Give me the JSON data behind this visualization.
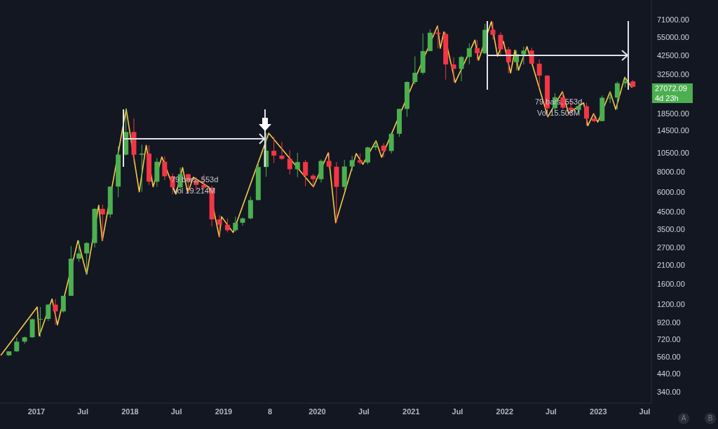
{
  "chart_data": {
    "type": "candlestick",
    "log": true,
    "grid": false,
    "legend": false,
    "xlim": [
      "2016-08-12",
      "2023-07-27"
    ],
    "xticks": [
      {
        "value": "2017-01-01",
        "label": "2017"
      },
      {
        "value": "2017-07-01",
        "label": "Jul"
      },
      {
        "value": "2018-01-01",
        "label": "2018"
      },
      {
        "value": "2018-07-01",
        "label": "Jul"
      },
      {
        "value": "2019-01-01",
        "label": "2019"
      },
      {
        "value": "2019-07-01",
        "label": "8"
      },
      {
        "value": "2020-01-01",
        "label": "2020"
      },
      {
        "value": "2020-07-01",
        "label": "Jul"
      },
      {
        "value": "2021-01-01",
        "label": "2021"
      },
      {
        "value": "2021-07-01",
        "label": "Jul"
      },
      {
        "value": "2022-01-01",
        "label": "2022"
      },
      {
        "value": "2022-07-01",
        "label": "Jul"
      },
      {
        "value": "2023-01-01",
        "label": "2023"
      },
      {
        "value": "2023-07-01",
        "label": "Jul"
      }
    ],
    "ylim": [
      290,
      94000
    ],
    "yticks": [
      {
        "value": 340,
        "label": "340.00"
      },
      {
        "value": 440,
        "label": "440.00"
      },
      {
        "value": 560,
        "label": "560.00"
      },
      {
        "value": 720,
        "label": "720.00"
      },
      {
        "value": 920,
        "label": "920.00"
      },
      {
        "value": 1200,
        "label": "1200.00"
      },
      {
        "value": 1600,
        "label": "1600.00"
      },
      {
        "value": 2100,
        "label": "2100.00"
      },
      {
        "value": 2700,
        "label": "2700.00"
      },
      {
        "value": 3500,
        "label": "3500.00"
      },
      {
        "value": 4500,
        "label": "4500.00"
      },
      {
        "value": 6000,
        "label": "6000.00"
      },
      {
        "value": 8000,
        "label": "8000.00"
      },
      {
        "value": 10500,
        "label": "10500.00"
      },
      {
        "value": 14500,
        "label": "14500.00"
      },
      {
        "value": 18500,
        "label": "18500.00"
      },
      {
        "value": 32500,
        "label": "32500.00"
      },
      {
        "value": 42500,
        "label": "42500.00"
      },
      {
        "value": 55000,
        "label": "55000.00"
      },
      {
        "value": 71000,
        "label": "71000.00"
      }
    ],
    "x": [
      "2016-09-15",
      "2016-10-15",
      "2016-11-15",
      "2016-12-15",
      "2017-01-15",
      "2017-02-15",
      "2017-03-15",
      "2017-04-15",
      "2017-05-15",
      "2017-06-15",
      "2017-07-15",
      "2017-08-15",
      "2017-09-15",
      "2017-10-15",
      "2017-11-15",
      "2017-12-15",
      "2018-01-15",
      "2018-02-15",
      "2018-03-15",
      "2018-04-15",
      "2018-05-15",
      "2018-06-15",
      "2018-07-15",
      "2018-08-15",
      "2018-09-15",
      "2018-10-15",
      "2018-11-15",
      "2018-12-15",
      "2019-01-15",
      "2019-02-15",
      "2019-03-15",
      "2019-04-15",
      "2019-05-15",
      "2019-06-15",
      "2019-07-15",
      "2019-08-15",
      "2019-09-15",
      "2019-10-15",
      "2019-11-15",
      "2019-12-15",
      "2020-01-15",
      "2020-02-15",
      "2020-03-15",
      "2020-04-15",
      "2020-05-15",
      "2020-06-15",
      "2020-07-15",
      "2020-08-15",
      "2020-09-15",
      "2020-10-15",
      "2020-11-15",
      "2020-12-15",
      "2021-01-15",
      "2021-02-15",
      "2021-03-15",
      "2021-04-15",
      "2021-05-15",
      "2021-06-15",
      "2021-07-15",
      "2021-08-15",
      "2021-09-15",
      "2021-10-15",
      "2021-11-15",
      "2021-12-15",
      "2022-01-15",
      "2022-02-15",
      "2022-03-15",
      "2022-04-15",
      "2022-05-15",
      "2022-06-15",
      "2022-07-15",
      "2022-08-15",
      "2022-09-15",
      "2022-10-15",
      "2022-11-15",
      "2022-12-15",
      "2023-01-15",
      "2023-02-15",
      "2023-03-15",
      "2023-04-15",
      "2023-05-15"
    ],
    "ohlc": [
      [
        575,
        610,
        570,
        609
      ],
      [
        609,
        740,
        605,
        700
      ],
      [
        700,
        752,
        680,
        745
      ],
      [
        745,
        975,
        740,
        965
      ],
      [
        965,
        1150,
        750,
        970
      ],
      [
        970,
        1200,
        940,
        1190
      ],
      [
        1190,
        1290,
        890,
        1080
      ],
      [
        1080,
        1350,
        1060,
        1350
      ],
      [
        1350,
        2760,
        1350,
        2300
      ],
      [
        2300,
        2980,
        2200,
        2480
      ],
      [
        2480,
        2920,
        1840,
        2880
      ],
      [
        2880,
        4750,
        2700,
        4700
      ],
      [
        4700,
        5000,
        2980,
        4340
      ],
      [
        4340,
        6470,
        4150,
        6470
      ],
      [
        6470,
        11500,
        5550,
        10230
      ],
      [
        10230,
        19800,
        10100,
        14150
      ],
      [
        14150,
        17250,
        9200,
        10220
      ],
      [
        10220,
        11800,
        6000,
        10390
      ],
      [
        10390,
        11700,
        6600,
        6940
      ],
      [
        6940,
        9750,
        6450,
        9240
      ],
      [
        9240,
        10000,
        7100,
        7500
      ],
      [
        7500,
        7800,
        5800,
        6400
      ],
      [
        6400,
        8500,
        6100,
        7730
      ],
      [
        7730,
        7750,
        5880,
        7030
      ],
      [
        7030,
        7400,
        6100,
        6630
      ],
      [
        6630,
        7700,
        6200,
        6370
      ],
      [
        6370,
        6550,
        3650,
        4040
      ],
      [
        4040,
        4300,
        3150,
        3740
      ],
      [
        3740,
        4100,
        3350,
        3460
      ],
      [
        3460,
        4200,
        3380,
        3850
      ],
      [
        3850,
        4150,
        3690,
        4100
      ],
      [
        4100,
        5600,
        4050,
        5330
      ],
      [
        5330,
        9100,
        5330,
        8570
      ],
      [
        8570,
        13900,
        7450,
        10820
      ],
      [
        10820,
        13200,
        9050,
        10090
      ],
      [
        10090,
        12300,
        9450,
        9630
      ],
      [
        9630,
        10900,
        7700,
        8300
      ],
      [
        8300,
        10500,
        7400,
        9200
      ],
      [
        9200,
        9500,
        6500,
        7570
      ],
      [
        7570,
        7750,
        6450,
        7190
      ],
      [
        7190,
        9550,
        6850,
        9350
      ],
      [
        9350,
        10500,
        8400,
        8600
      ],
      [
        8600,
        9200,
        3850,
        6440
      ],
      [
        6440,
        9500,
        6150,
        8630
      ],
      [
        8630,
        10070,
        8100,
        9450
      ],
      [
        9450,
        10400,
        8900,
        9140
      ],
      [
        9140,
        11450,
        8900,
        11350
      ],
      [
        11350,
        12480,
        10900,
        11650
      ],
      [
        11650,
        12050,
        9850,
        10780
      ],
      [
        10780,
        14100,
        10400,
        13800
      ],
      [
        13800,
        19800,
        13200,
        19700
      ],
      [
        19700,
        29300,
        17600,
        29000
      ],
      [
        29000,
        41900,
        28100,
        33100
      ],
      [
        33100,
        58300,
        32300,
        45200
      ],
      [
        45200,
        61800,
        45000,
        58800
      ],
      [
        58800,
        64800,
        47000,
        57700
      ],
      [
        57700,
        59500,
        30000,
        37300
      ],
      [
        37300,
        41300,
        28800,
        35000
      ],
      [
        35000,
        42300,
        29300,
        41500
      ],
      [
        41500,
        50500,
        37300,
        47100
      ],
      [
        47100,
        52900,
        39600,
        43800
      ],
      [
        43800,
        67000,
        43300,
        61300
      ],
      [
        61300,
        69000,
        53300,
        57000
      ],
      [
        57000,
        59100,
        42000,
        46300
      ],
      [
        46300,
        47900,
        32900,
        38500
      ],
      [
        38500,
        45800,
        34300,
        43200
      ],
      [
        43200,
        48200,
        37200,
        45500
      ],
      [
        45500,
        47400,
        37600,
        37700
      ],
      [
        37700,
        40000,
        26700,
        31800
      ],
      [
        31800,
        31900,
        17600,
        19900
      ],
      [
        19900,
        24700,
        18800,
        23300
      ],
      [
        23300,
        25200,
        19600,
        20050
      ],
      [
        20050,
        22800,
        18150,
        19430
      ],
      [
        19430,
        21100,
        18200,
        20500
      ],
      [
        20500,
        21500,
        15500,
        17170
      ],
      [
        17170,
        18400,
        16300,
        16550
      ],
      [
        16550,
        23900,
        16500,
        23140
      ],
      [
        23140,
        25250,
        21400,
        23150
      ],
      [
        23150,
        29200,
        19550,
        28480
      ],
      [
        28480,
        31000,
        26900,
        29250
      ],
      [
        29250,
        29800,
        26800,
        27072.09
      ]
    ],
    "colors": [
      "#4caf50",
      "#4caf50",
      "#4caf50",
      "#4caf50",
      "#4caf50",
      "#4caf50",
      "#f23645",
      "#4caf50",
      "#4caf50",
      "#4caf50",
      "#4caf50",
      "#4caf50",
      "#f23645",
      "#4caf50",
      "#4caf50",
      "#4caf50",
      "#f23645",
      "#4caf50",
      "#f23645",
      "#4caf50",
      "#f23645",
      "#f23645",
      "#4caf50",
      "#f23645",
      "#f23645",
      "#f23645",
      "#f23645",
      "#f23645",
      "#f23645",
      "#4caf50",
      "#4caf50",
      "#4caf50",
      "#4caf50",
      "#4caf50",
      "#f23645",
      "#f23645",
      "#f23645",
      "#4caf50",
      "#f23645",
      "#f23645",
      "#4caf50",
      "#f23645",
      "#f23645",
      "#4caf50",
      "#4caf50",
      "#f23645",
      "#4caf50",
      "#4caf50",
      "#f23645",
      "#4caf50",
      "#4caf50",
      "#4caf50",
      "#4caf50",
      "#4caf50",
      "#4caf50",
      "#f23645",
      "#f23645",
      "#f23645",
      "#4caf50",
      "#4caf50",
      "#f23645",
      "#4caf50",
      "#f23645",
      "#f23645",
      "#f23645",
      "#4caf50",
      "#4caf50",
      "#f23645",
      "#f23645",
      "#f23645",
      "#4caf50",
      "#f23645",
      "#f23645",
      "#4caf50",
      "#f23645",
      "#f23645",
      "#4caf50",
      "#4caf50",
      "#4caf50",
      "#4caf50",
      "#f23645"
    ],
    "series": [
      {
        "type": "line",
        "color": "#f7c948",
        "x": [
          "2016-08-15",
          "2017-01-04",
          "2017-01-12",
          "2017-03-03",
          "2017-03-24",
          "2017-06-12",
          "2017-07-16",
          "2017-09-01",
          "2017-09-15",
          "2017-12-17",
          "2018-02-06",
          "2018-03-05",
          "2018-04-01",
          "2018-05-05",
          "2018-06-29",
          "2018-07-25",
          "2018-08-14",
          "2018-09-05",
          "2018-11-05",
          "2018-12-15",
          "2018-12-24",
          "2019-02-07",
          "2019-06-26",
          "2019-12-17",
          "2020-02-13",
          "2020-03-13",
          "2020-06-01",
          "2020-06-27",
          "2020-08-17",
          "2020-09-08",
          "2021-04-14",
          "2021-04-25",
          "2021-05-09",
          "2021-06-22",
          "2021-09-07",
          "2021-09-21",
          "2021-11-10",
          "2021-12-04",
          "2021-12-27",
          "2022-01-24",
          "2022-02-10",
          "2022-02-24",
          "2022-03-29",
          "2022-06-18",
          "2022-08-14",
          "2022-09-07",
          "2022-11-05",
          "2022-11-21",
          "2022-12-14",
          "2022-12-30",
          "2023-02-16",
          "2023-03-10",
          "2023-04-14",
          "2023-05-12"
        ],
        "values": [
          575,
          1150,
          760,
          1290,
          890,
          2980,
          1840,
          4950,
          2980,
          19700,
          6000,
          11700,
          6450,
          9900,
          5800,
          8500,
          5900,
          7400,
          6400,
          3150,
          4200,
          3350,
          13900,
          6450,
          10500,
          3850,
          10400,
          8900,
          12480,
          9850,
          64800,
          47000,
          59500,
          28800,
          52900,
          39600,
          69000,
          42000,
          52000,
          33000,
          45800,
          34300,
          48200,
          17600,
          25200,
          18500,
          21500,
          15500,
          18400,
          16300,
          25200,
          19600,
          31000,
          26800
        ]
      }
    ],
    "annotations": [
      "79 bars, 553d",
      "Vol 19.214M",
      "79 bars, 553d",
      "Vol 15.503M",
      "27072.09",
      "4d 23h",
      "A",
      "B"
    ]
  }
}
